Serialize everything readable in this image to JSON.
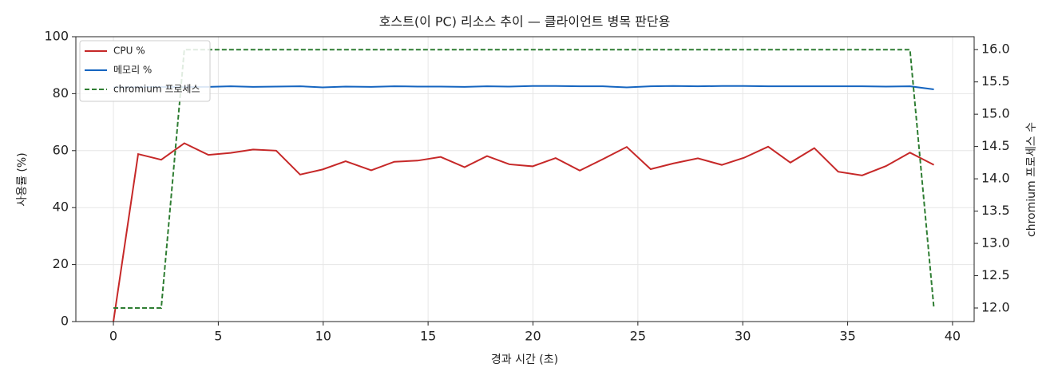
{
  "chart_data": {
    "type": "line",
    "title": "호스트(이 PC) 리소스 추이 — 클라이언트 병목 판단용",
    "xlabel": "경과 시간 (초)",
    "ylabel": "사용률 (%)",
    "y2label": "chromium 프로세스 수",
    "x": [
      0,
      1.18,
      2.28,
      3.38,
      4.53,
      5.59,
      6.66,
      7.76,
      8.9,
      9.97,
      11.07,
      12.29,
      13.39,
      14.5,
      15.6,
      16.74,
      17.81,
      18.88,
      19.98,
      21.08,
      22.23,
      23.33,
      24.47,
      25.61,
      26.68,
      27.86,
      29.0,
      30.06,
      31.21,
      32.27,
      33.41,
      34.55,
      35.69,
      36.83,
      37.97,
      39.11
    ],
    "series": [
      {
        "name": "CPU %",
        "color": "#c62828",
        "style": "solid",
        "values": [
          0,
          58.8,
          56.8,
          62.6,
          58.5,
          59.2,
          60.4,
          60.0,
          51.6,
          53.4,
          56.3,
          53.1,
          56.1,
          56.5,
          57.8,
          54.2,
          58.1,
          55.2,
          54.5,
          57.4,
          53.0,
          57.0,
          61.3,
          53.5,
          55.5,
          57.3,
          55.0,
          57.5,
          61.4,
          55.8,
          60.9,
          52.6,
          51.3,
          54.6,
          59.3,
          55.0
        ]
      },
      {
        "name": "메모리 %",
        "color": "#1565c0",
        "style": "solid",
        "values": [
          82.2,
          82.3,
          82.4,
          82.3,
          82.4,
          82.6,
          82.4,
          82.5,
          82.6,
          82.2,
          82.5,
          82.4,
          82.6,
          82.5,
          82.5,
          82.4,
          82.6,
          82.5,
          82.7,
          82.7,
          82.6,
          82.6,
          82.2,
          82.6,
          82.7,
          82.6,
          82.7,
          82.7,
          82.6,
          82.6,
          82.6,
          82.6,
          82.6,
          82.5,
          82.6,
          81.5
        ]
      },
      {
        "name": "chromium 프로세스",
        "color": "#2e7d32",
        "style": "dashed",
        "axis": "y2",
        "values": [
          12,
          12,
          12,
          16,
          16,
          16,
          16,
          16,
          16,
          16,
          16,
          16,
          16,
          16,
          16,
          16,
          16,
          16,
          16,
          16,
          16,
          16,
          16,
          16,
          16,
          16,
          16,
          16,
          16,
          16,
          16,
          16,
          16,
          16,
          16,
          12
        ]
      }
    ],
    "xlim": [
      -1.79,
      41.03
    ],
    "xticks": [
      0,
      5,
      10,
      15,
      20,
      25,
      30,
      35,
      40
    ],
    "ylim": [
      0,
      100
    ],
    "yticks": [
      0,
      20,
      40,
      60,
      80,
      100
    ],
    "y2lim": [
      11.79,
      16.2
    ],
    "y2ticks": [
      {
        "value": 12,
        "label": "12.0"
      },
      12.5,
      {
        "value": 13,
        "label": "13.0"
      },
      13.5,
      {
        "value": 14,
        "label": "14.0"
      },
      14.5,
      {
        "value": 15,
        "label": "15.0"
      },
      15.5,
      {
        "value": 16,
        "label": "16.0"
      }
    ],
    "grid": true,
    "legend": "upper left"
  }
}
